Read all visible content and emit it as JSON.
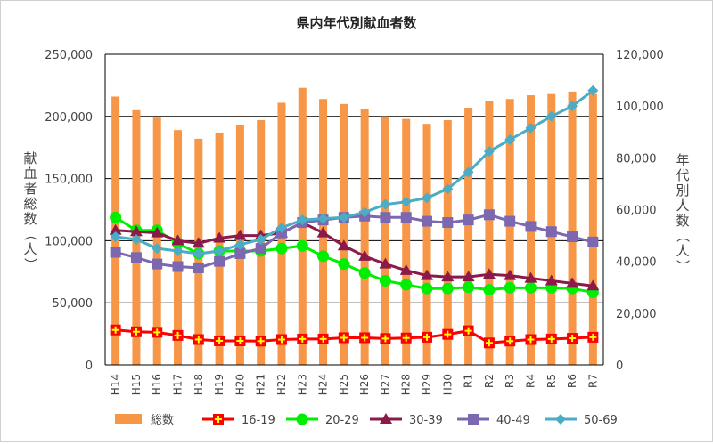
{
  "chart_data": {
    "type": "bar",
    "title": "県内年代別献血者数",
    "ylabel_left": "献血者総数（人）",
    "ylabel_right": "年代別人数（人）",
    "xlabel": "",
    "ylim_left": [
      0,
      250000
    ],
    "ylim_right": [
      0,
      120000
    ],
    "yticks_left": [
      "0",
      "50,000",
      "100,000",
      "150,000",
      "200,000",
      "250,000"
    ],
    "yticks_right": [
      "0",
      "20,000",
      "40,000",
      "60,000",
      "80,000",
      "100,000",
      "120,000"
    ],
    "grid": "horizontal",
    "legend_position": "bottom",
    "categories": [
      "H14",
      "H15",
      "H16",
      "H17",
      "H18",
      "H19",
      "H20",
      "H21",
      "H22",
      "H23",
      "H24",
      "H25",
      "H26",
      "H27",
      "H28",
      "H29",
      "H30",
      "R1",
      "R2",
      "R3",
      "R4",
      "R5",
      "R6",
      "R7"
    ],
    "series": [
      {
        "name": "総数",
        "type": "bar",
        "axis": "left",
        "color": "#f79646",
        "values": [
          216000,
          205000,
          199000,
          189000,
          182000,
          187000,
          193000,
          197000,
          211000,
          223000,
          214000,
          210000,
          206000,
          200000,
          198000,
          194000,
          197000,
          207000,
          212000,
          214000,
          217000,
          218000,
          220000,
          218000
        ]
      },
      {
        "name": "16-19",
        "type": "line",
        "axis": "right",
        "color": "#ff0000",
        "marker": "square-cross",
        "values": [
          13500,
          12800,
          12600,
          11400,
          9800,
          9300,
          9300,
          9200,
          9800,
          10000,
          10000,
          10500,
          10500,
          10200,
          10400,
          10700,
          11800,
          13200,
          8500,
          9200,
          9800,
          10000,
          10300,
          10700
        ]
      },
      {
        "name": "20-29",
        "type": "line",
        "axis": "right",
        "color": "#00ee00",
        "marker": "circle",
        "values": [
          57000,
          52000,
          52000,
          47000,
          43000,
          44000,
          44000,
          44000,
          45000,
          46000,
          42000,
          39000,
          35500,
          32500,
          31000,
          29500,
          29500,
          30000,
          29000,
          29800,
          29800,
          29800,
          29500,
          28000
        ]
      },
      {
        "name": "30-39",
        "type": "line",
        "axis": "right",
        "color": "#8b1a4a",
        "marker": "triangle",
        "values": [
          52000,
          51500,
          51000,
          48000,
          47000,
          49000,
          50000,
          50000,
          51000,
          55000,
          51000,
          46000,
          42000,
          39000,
          36500,
          34500,
          34000,
          34000,
          35000,
          34500,
          33500,
          32500,
          31500,
          30500
        ]
      },
      {
        "name": "40-49",
        "type": "line",
        "axis": "right",
        "color": "#7b68b0",
        "marker": "square",
        "values": [
          43500,
          41500,
          39000,
          38000,
          37500,
          40000,
          43000,
          45000,
          51000,
          55000,
          56000,
          57000,
          57500,
          57000,
          57000,
          55500,
          55000,
          56000,
          58000,
          55500,
          53500,
          51500,
          49500,
          47500
        ]
      },
      {
        "name": "50-69",
        "type": "line",
        "axis": "right",
        "color": "#4bacc6",
        "marker": "diamond",
        "values": [
          49500,
          48500,
          45000,
          44000,
          43000,
          44000,
          46500,
          48500,
          53000,
          56000,
          56500,
          57000,
          59000,
          62000,
          63000,
          64500,
          68000,
          74500,
          82500,
          87000,
          91500,
          96000,
          100000,
          106000
        ]
      }
    ]
  }
}
